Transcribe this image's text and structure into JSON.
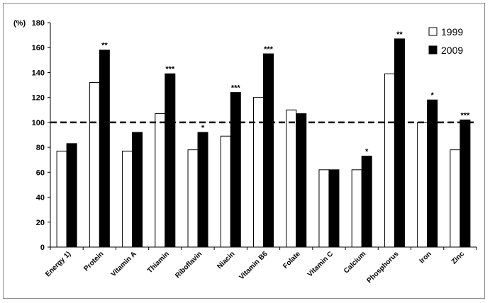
{
  "chart_data": {
    "type": "bar",
    "ylabel": "(%)",
    "ylim": [
      0,
      180
    ],
    "yticks": [
      0,
      20,
      40,
      60,
      80,
      100,
      120,
      140,
      160,
      180
    ],
    "reference_line": 100,
    "categories": [
      "Energy 1)",
      "Protein",
      "Vitamin A",
      "Thiamin",
      "Riboflavin",
      "Niacin",
      "Vitamin B6",
      "Folate",
      "Vitamin C",
      "Calcium",
      "Phosphorus",
      "Iron",
      "Zinc"
    ],
    "series": [
      {
        "name": "1999",
        "color": "#ffffff",
        "values": [
          77,
          132,
          77,
          107,
          78,
          89,
          120,
          110,
          62,
          62,
          139,
          100,
          78
        ]
      },
      {
        "name": "2009",
        "color": "#000000",
        "values": [
          83,
          158,
          92,
          139,
          92,
          124,
          155,
          107,
          62,
          73,
          167,
          118,
          102
        ]
      }
    ],
    "significance": [
      "",
      "**",
      "",
      "***",
      "*",
      "***",
      "***",
      "",
      "",
      "*",
      "**",
      "*",
      "***"
    ],
    "legend_position": "top-right",
    "grid": false
  }
}
